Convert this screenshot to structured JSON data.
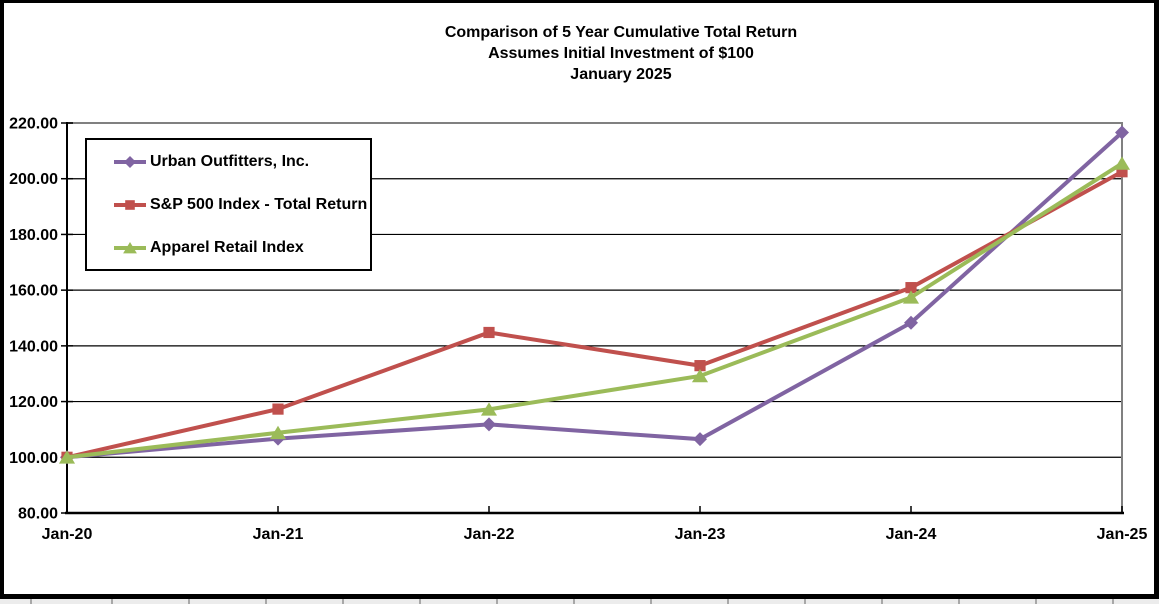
{
  "title": {
    "line1": "Comparison of 5 Year Cumulative Total Return",
    "line2": "Assumes Initial Investment of $100",
    "line3": "January 2025"
  },
  "chart_data": {
    "type": "line",
    "title": "Comparison of 5 Year Cumulative Total Return",
    "subtitle": "Assumes Initial Investment of $100",
    "date_label": "January 2025",
    "categories": [
      "Jan-20",
      "Jan-21",
      "Jan-22",
      "Jan-23",
      "Jan-24",
      "Jan-25"
    ],
    "series": [
      {
        "name": "Urban Outfitters, Inc.",
        "marker": "diamond",
        "color": "#8064A2",
        "values": [
          100.0,
          106.7,
          111.8,
          106.5,
          148.3,
          216.6
        ]
      },
      {
        "name": "S&P 500 Index - Total Return",
        "marker": "square",
        "color": "#C0504D",
        "values": [
          100.0,
          117.3,
          144.8,
          132.9,
          160.9,
          202.5
        ]
      },
      {
        "name": "Apparel Retail Index",
        "marker": "triangle",
        "color": "#9BBB59",
        "values": [
          100.0,
          108.8,
          117.2,
          129.2,
          157.4,
          205.5
        ]
      }
    ],
    "ylim": [
      80,
      220
    ],
    "ytick_step": 20,
    "ytick_labels": [
      "80.00",
      "100.00",
      "120.00",
      "140.00",
      "160.00",
      "180.00",
      "200.00",
      "220.00"
    ],
    "xlabel": "",
    "ylabel": "",
    "grid": "horizontal",
    "legend_position": "inside-top-left"
  },
  "colors": {
    "urban_outfitters": "#8064A2",
    "sp500": "#C0504D",
    "apparel_retail": "#9BBB59",
    "gridline": "#000000",
    "axis": "#000000",
    "plot_border": "#808080",
    "frame": "#000000",
    "background": "#FFFFFF"
  }
}
